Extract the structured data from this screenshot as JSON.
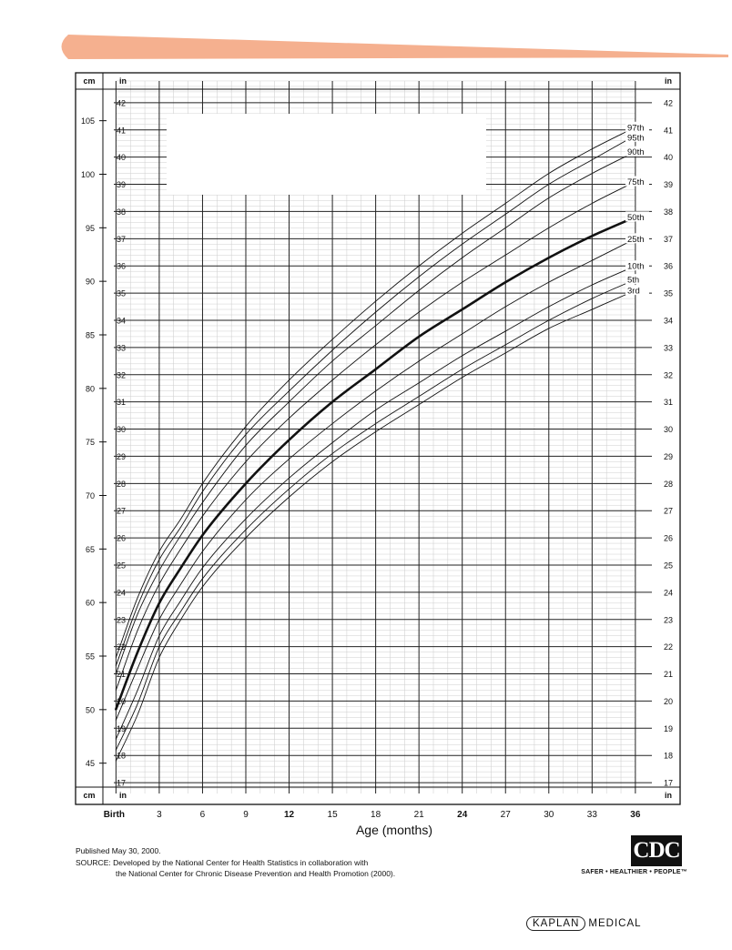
{
  "header": {
    "band_color": "#f5b08f"
  },
  "chart_data": {
    "type": "line",
    "title": "",
    "xlabel": "Age (months)",
    "ylabel": "",
    "xlim": [
      -2.8,
      39.1
    ],
    "ylim_in": [
      16.2,
      43.1
    ],
    "x_ticks": [
      {
        "value": 0,
        "label": "Birth",
        "bold": true
      },
      {
        "value": 3,
        "label": "3",
        "bold": false
      },
      {
        "value": 6,
        "label": "6",
        "bold": false
      },
      {
        "value": 9,
        "label": "9",
        "bold": false
      },
      {
        "value": 12,
        "label": "12",
        "bold": true
      },
      {
        "value": 15,
        "label": "15",
        "bold": false
      },
      {
        "value": 18,
        "label": "18",
        "bold": false
      },
      {
        "value": 21,
        "label": "21",
        "bold": false
      },
      {
        "value": 24,
        "label": "24",
        "bold": true
      },
      {
        "value": 27,
        "label": "27",
        "bold": false
      },
      {
        "value": 30,
        "label": "30",
        "bold": false
      },
      {
        "value": 33,
        "label": "33",
        "bold": false
      },
      {
        "value": 36,
        "label": "36",
        "bold": true
      }
    ],
    "inch_ticks": [
      17,
      18,
      19,
      20,
      21,
      22,
      23,
      24,
      25,
      26,
      27,
      28,
      29,
      30,
      31,
      32,
      33,
      34,
      35,
      36,
      37,
      38,
      39,
      40,
      41,
      42
    ],
    "cm_ticks": [
      45,
      50,
      55,
      60,
      65,
      70,
      75,
      80,
      85,
      90,
      95,
      100,
      105
    ],
    "axis_units": {
      "left_outer": "cm",
      "left_inner": "in",
      "right": "in"
    },
    "series_x": [
      0,
      1.5,
      3,
      4.5,
      6,
      9,
      12,
      15,
      18,
      21,
      24,
      27,
      30,
      33,
      36
    ],
    "series": [
      {
        "name": "3rd",
        "bold": false,
        "values": [
          17.8,
          19.5,
          21.6,
          23.0,
          24.2,
          26.0,
          27.5,
          28.8,
          29.9,
          30.9,
          31.9,
          32.8,
          33.7,
          34.4,
          35.1
        ]
      },
      {
        "name": "5th",
        "bold": false,
        "values": [
          18.2,
          19.9,
          22.0,
          23.3,
          24.5,
          26.3,
          27.8,
          29.1,
          30.2,
          31.2,
          32.2,
          33.1,
          34.0,
          34.8,
          35.5
        ]
      },
      {
        "name": "10th",
        "bold": false,
        "values": [
          18.6,
          20.4,
          22.4,
          23.7,
          24.9,
          26.7,
          28.2,
          29.5,
          30.7,
          31.7,
          32.7,
          33.6,
          34.5,
          35.3,
          36.0
        ]
      },
      {
        "name": "25th",
        "bold": false,
        "values": [
          19.3,
          21.2,
          23.0,
          24.3,
          25.5,
          27.4,
          28.9,
          30.2,
          31.4,
          32.5,
          33.5,
          34.5,
          35.4,
          36.2,
          37.0
        ]
      },
      {
        "name": "50th",
        "bold": true,
        "values": [
          19.7,
          21.8,
          23.6,
          24.9,
          26.1,
          28.0,
          29.6,
          31.0,
          32.2,
          33.4,
          34.4,
          35.4,
          36.3,
          37.1,
          37.8
        ]
      },
      {
        "name": "75th",
        "bold": false,
        "values": [
          20.4,
          22.6,
          24.3,
          25.6,
          26.8,
          28.8,
          30.4,
          31.8,
          33.1,
          34.3,
          35.4,
          36.4,
          37.4,
          38.3,
          39.1
        ]
      },
      {
        "name": "90th",
        "bold": false,
        "values": [
          21.0,
          23.2,
          24.8,
          26.1,
          27.3,
          29.4,
          31.0,
          32.5,
          33.8,
          35.1,
          36.3,
          37.4,
          38.5,
          39.4,
          40.2
        ]
      },
      {
        "name": "95th",
        "bold": false,
        "values": [
          21.3,
          23.5,
          25.2,
          26.4,
          27.7,
          29.8,
          31.4,
          32.9,
          34.3,
          35.6,
          36.8,
          37.9,
          39.0,
          39.9,
          40.8
        ]
      },
      {
        "name": "97th",
        "bold": false,
        "values": [
          21.6,
          23.8,
          25.5,
          26.7,
          28.0,
          30.1,
          31.8,
          33.3,
          34.7,
          36.0,
          37.2,
          38.3,
          39.4,
          40.3,
          41.1
        ]
      }
    ],
    "grid": true,
    "legend": "curve labels at right end of each line"
  },
  "footer": {
    "published": "Published May 30, 2000.",
    "source_line1": "SOURCE: Developed by the National Center for Health Statistics in collaboration with",
    "source_line2": "the National Center for Chronic Disease Prevention and Health Promotion (2000).",
    "cdc_logo_text": "CDC",
    "cdc_tagline": "SAFER • HEALTHIER • PEOPLE™",
    "kaplan_brand": "KAPLAN",
    "kaplan_suffix": "MEDICAL"
  }
}
